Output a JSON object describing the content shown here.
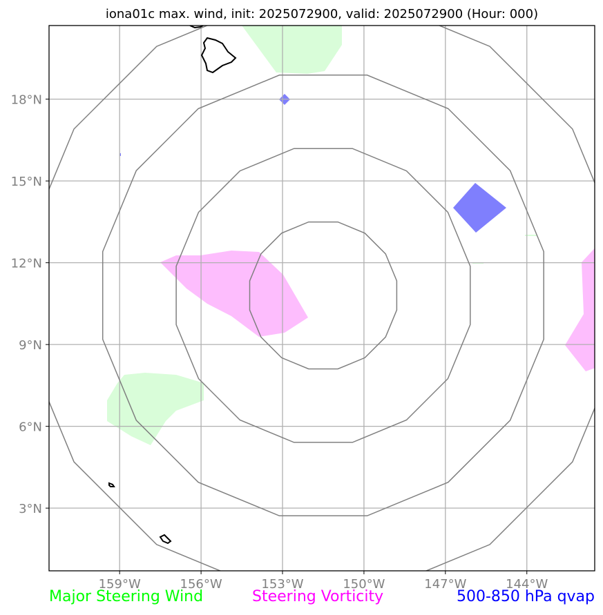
{
  "title": "iona01c max. wind, init: 2025072900, valid: 2025072900 (Hour: 000)",
  "axes": {
    "lon_ticks": [
      "159°W",
      "156°W",
      "153°W",
      "150°W",
      "147°W",
      "144°W"
    ],
    "lat_ticks": [
      "18°N",
      "15°N",
      "12°N",
      "9°N",
      "6°N",
      "3°N"
    ],
    "lon_range_deg": [
      -161.6,
      -141.5
    ],
    "lat_range_deg": [
      0.7,
      20.7
    ],
    "grid": true
  },
  "range_rings": {
    "center": [
      -151.5,
      10.8
    ],
    "count": 4
  },
  "legend": [
    {
      "label": "Major Steering Wind",
      "color": "#00ff00"
    },
    {
      "label": "Steering Vorticity",
      "color": "#ff00ff"
    },
    {
      "label": "500-850 hPa qvap",
      "color": "#0000ff"
    }
  ],
  "colors": {
    "steering_wind_fill": "#d9fdd9",
    "vorticity_fill": "#fdbdfd",
    "qvap_fill": "#7f7ffd",
    "coastline": "#000000",
    "ring": "#808080",
    "grid": "#b0b0b0",
    "tick_label": "#808080"
  }
}
